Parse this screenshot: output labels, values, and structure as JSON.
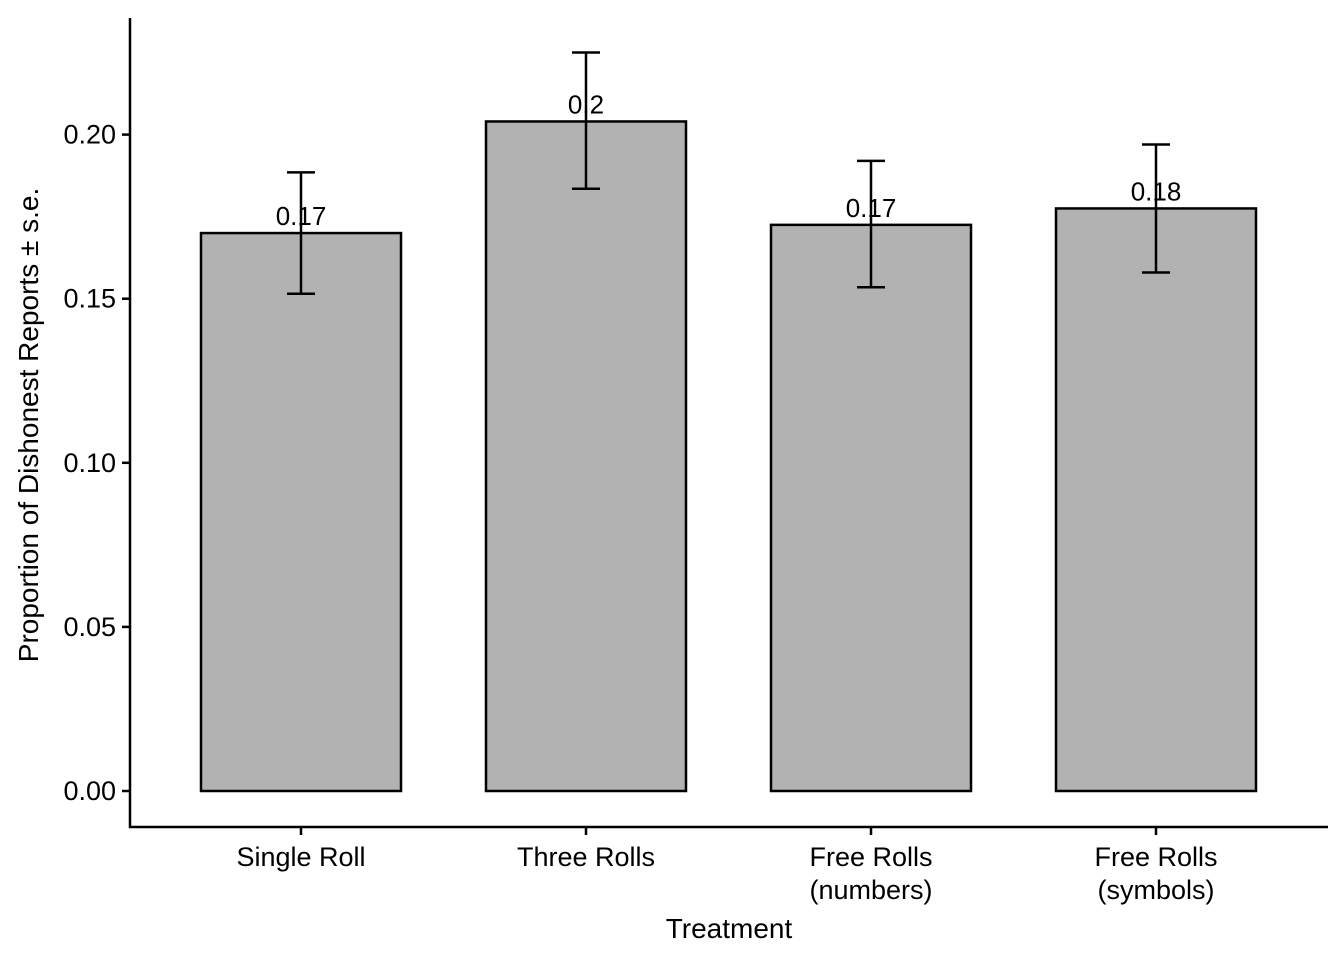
{
  "chart_data": {
    "type": "bar",
    "categories": [
      [
        "Single Roll"
      ],
      [
        "Three Rolls"
      ],
      [
        "Free Rolls",
        "(numbers)"
      ],
      [
        "Free Rolls",
        "(symbols)"
      ]
    ],
    "values": [
      0.17,
      0.204,
      0.1725,
      0.1775
    ],
    "error_low": [
      0.1515,
      0.1835,
      0.1535,
      0.158
    ],
    "error_high": [
      0.1885,
      0.225,
      0.192,
      0.197
    ],
    "data_labels": [
      "0.17",
      "0.2",
      "0.17",
      "0.18"
    ],
    "xlabel": "Treatment",
    "ylabel": "Proportion of Dishonest Reports ± s.e.",
    "ylim": [
      0,
      0.23
    ],
    "yticks": [
      0.0,
      0.05,
      0.1,
      0.15,
      0.2
    ],
    "ytick_labels": [
      "0.00",
      "0.05",
      "0.10",
      "0.15",
      "0.20"
    ],
    "grid": false,
    "colors": {
      "bar_fill": "#b2b2b2",
      "bar_stroke": "#000000",
      "axis": "#000000"
    }
  }
}
